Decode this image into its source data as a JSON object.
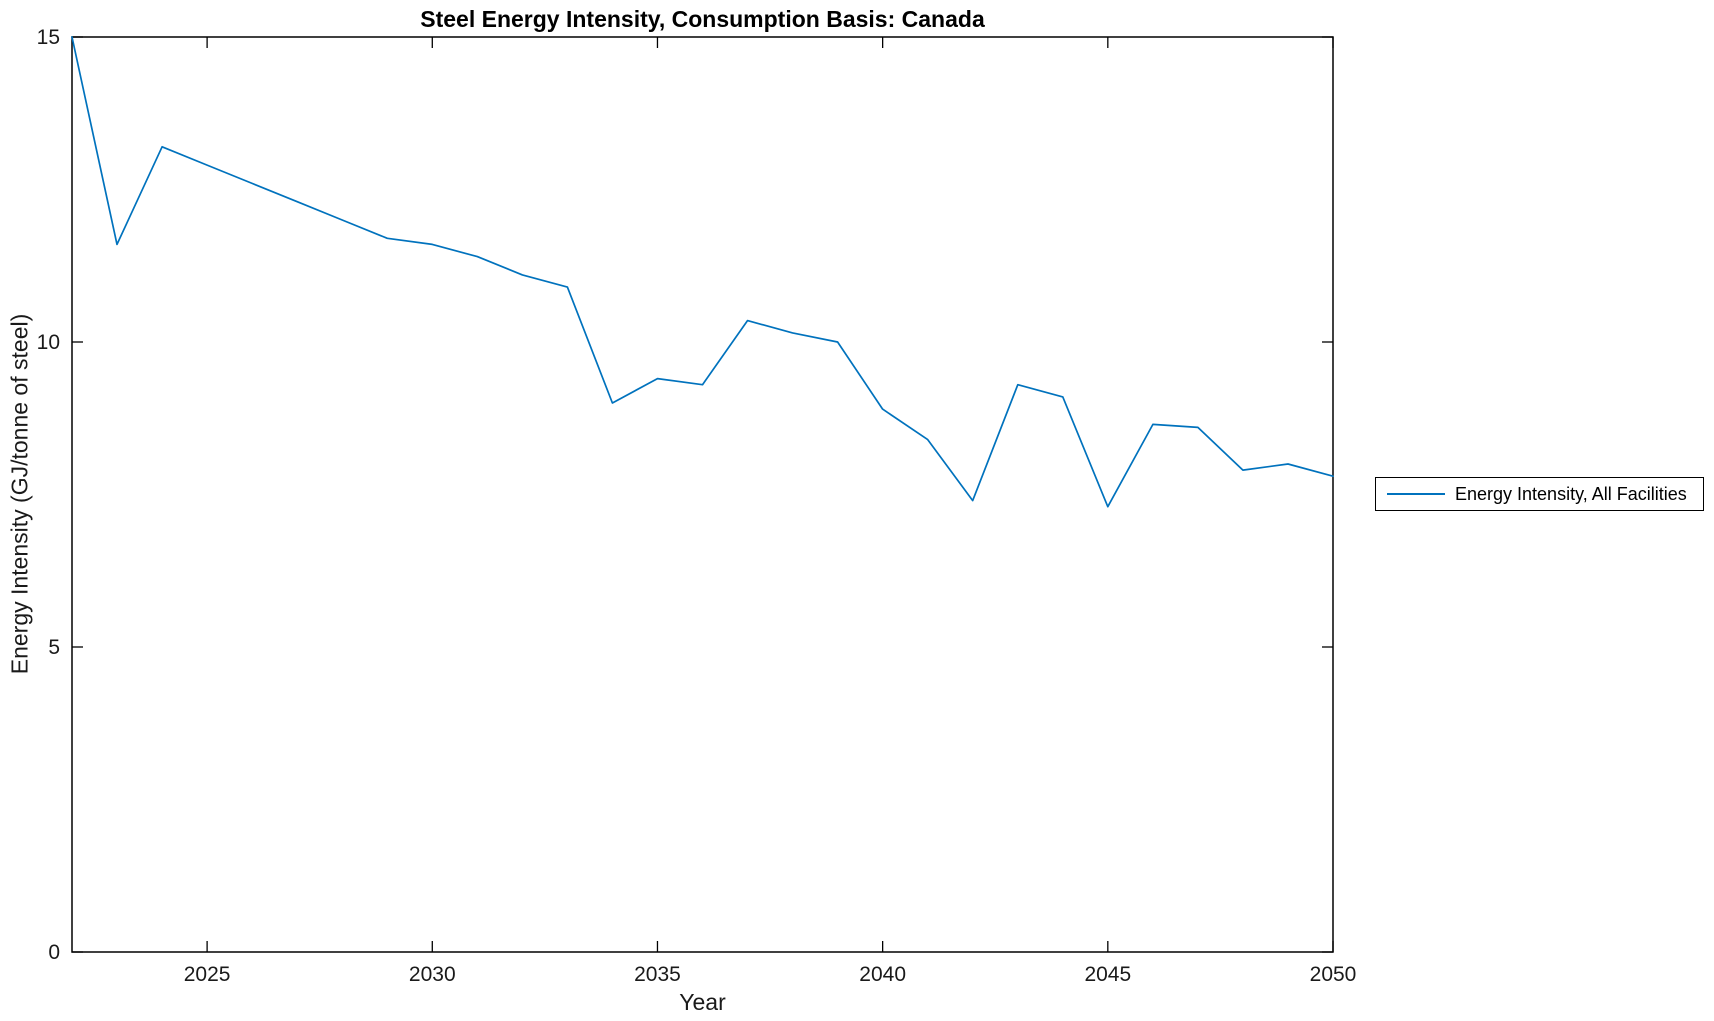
{
  "figure": {
    "title": "Steel Energy Intensity, Consumption Basis: Canada",
    "xlabel": "Year",
    "ylabel": "Energy Intensity (GJ/tonne of steel)"
  },
  "legend": {
    "items": [
      {
        "label": "Energy Intensity, All Facilities",
        "color": "#0072BD"
      }
    ]
  },
  "colors": {
    "line": "#0072BD",
    "axis": "#000000",
    "background": "#ffffff"
  },
  "chart_data": {
    "type": "line",
    "title": "Steel Energy Intensity, Consumption Basis: Canada",
    "xlabel": "Year",
    "ylabel": "Energy Intensity (GJ/tonne of steel)",
    "xlim": [
      2022,
      2050
    ],
    "ylim": [
      0,
      15
    ],
    "x_ticks": [
      2025,
      2030,
      2035,
      2040,
      2045,
      2050
    ],
    "y_ticks": [
      0,
      5,
      10,
      15
    ],
    "grid": false,
    "box": true,
    "tick_direction": "in",
    "legend_position": "outside-right",
    "series": [
      {
        "name": "Energy Intensity, All Facilities",
        "color": "#0072BD",
        "x": [
          2022,
          2023,
          2024,
          2025,
          2026,
          2027,
          2028,
          2029,
          2030,
          2031,
          2032,
          2033,
          2034,
          2035,
          2036,
          2037,
          2038,
          2039,
          2040,
          2041,
          2042,
          2043,
          2044,
          2045,
          2046,
          2047,
          2048,
          2049,
          2050
        ],
        "values": [
          15.0,
          11.6,
          13.2,
          12.9,
          12.6,
          12.3,
          12.0,
          11.7,
          11.6,
          11.4,
          11.1,
          10.9,
          9.0,
          9.4,
          9.3,
          10.35,
          10.15,
          10.0,
          8.9,
          8.4,
          7.4,
          9.3,
          9.1,
          7.3,
          8.65,
          8.6,
          7.9,
          8.0,
          7.8
        ]
      }
    ]
  }
}
